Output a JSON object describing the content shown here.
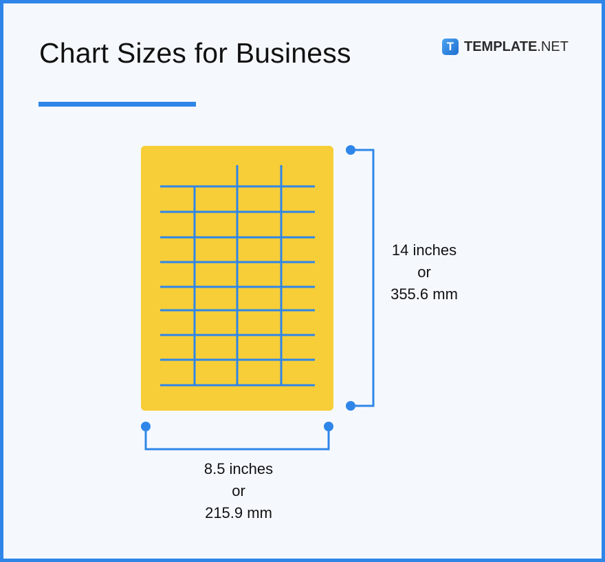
{
  "title": "Chart Sizes for Business",
  "brand": {
    "icon_letter": "T",
    "name_bold": "TEMPLATE",
    "name_light": ".NET"
  },
  "height_label": {
    "line1": "14 inches",
    "line2": "or",
    "line3": "355.6 mm"
  },
  "width_label": {
    "line1": "8.5 inches",
    "line2": "or",
    "line3": "215.9 mm"
  },
  "colors": {
    "accent": "#2f86e8",
    "paper": "#f7ce38",
    "background": "#f5f9fe"
  }
}
